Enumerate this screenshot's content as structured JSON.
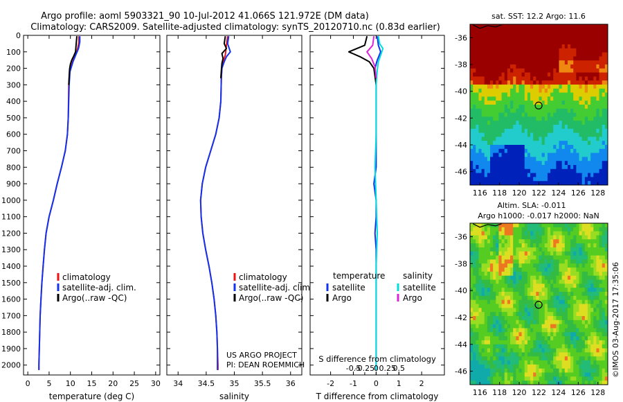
{
  "header": {
    "title_line1": "Argo profile: aoml 5903321_90 10-Jul-2012 41.066S 121.972E (DM data)",
    "title_line2": "Climatology: CARS2009. Satellite-adjusted climatology: synTS_20120710.nc (0.83d earlier)"
  },
  "credit": "©IMOS 03-Aug-2017 17:35:06",
  "project": {
    "line1": "US ARGO PROJECT",
    "line2": "PI: DEAN ROEMMICH"
  },
  "colors": {
    "climatology": "#ee1111",
    "satellite": "#1133ee",
    "argo": "#000000",
    "sal_sat": "#00dddd",
    "sal_argo": "#dd22dd",
    "argo_marker": "#000000"
  },
  "chart_data": [
    {
      "id": "temperature",
      "type": "line",
      "xlabel": "temperature (deg C)",
      "ylabel": "",
      "xlim": [
        -1,
        31
      ],
      "ylim": [
        2060,
        0
      ],
      "xticks": [
        0,
        5,
        10,
        15,
        20,
        25,
        30
      ],
      "yticks": [
        0,
        100,
        200,
        300,
        400,
        500,
        600,
        700,
        800,
        900,
        1000,
        1100,
        1200,
        1300,
        1400,
        1500,
        1600,
        1700,
        1800,
        1900,
        2000
      ],
      "legend": [
        "climatology",
        "satellite-adj. clim.",
        "Argo(..raw -QC)"
      ],
      "series": [
        {
          "name": "climatology",
          "color": "climatology",
          "points": [
            [
              12.0,
              5
            ],
            [
              12.0,
              40
            ],
            [
              11.7,
              80
            ],
            [
              11.3,
              110
            ],
            [
              10.5,
              160
            ],
            [
              9.8,
              220
            ],
            [
              9.6,
              300
            ],
            [
              9.5,
              500
            ],
            [
              9.3,
              600
            ],
            [
              8.8,
              700
            ],
            [
              7.9,
              800
            ],
            [
              6.9,
              900
            ],
            [
              6.0,
              1000
            ],
            [
              5.0,
              1100
            ],
            [
              4.3,
              1200
            ],
            [
              3.9,
              1300
            ],
            [
              3.6,
              1400
            ],
            [
              3.3,
              1500
            ],
            [
              3.1,
              1600
            ],
            [
              2.9,
              1700
            ],
            [
              2.8,
              1800
            ],
            [
              2.7,
              1900
            ],
            [
              2.6,
              2000
            ],
            [
              2.6,
              2030
            ]
          ]
        },
        {
          "name": "satellite-adj. clim.",
          "color": "satellite",
          "points": [
            [
              12.2,
              5
            ],
            [
              12.2,
              40
            ],
            [
              11.9,
              80
            ],
            [
              11.4,
              110
            ],
            [
              10.6,
              160
            ],
            [
              9.9,
              220
            ],
            [
              9.7,
              300
            ],
            [
              9.5,
              500
            ],
            [
              9.3,
              600
            ],
            [
              8.8,
              700
            ],
            [
              7.9,
              800
            ],
            [
              6.9,
              900
            ],
            [
              6.0,
              1000
            ],
            [
              5.0,
              1100
            ],
            [
              4.3,
              1200
            ],
            [
              3.9,
              1300
            ],
            [
              3.6,
              1400
            ],
            [
              3.3,
              1500
            ],
            [
              3.1,
              1600
            ],
            [
              2.9,
              1700
            ],
            [
              2.8,
              1800
            ],
            [
              2.7,
              1900
            ],
            [
              2.6,
              2000
            ],
            [
              2.6,
              2030
            ]
          ]
        },
        {
          "name": "Argo(..raw -QC)",
          "color": "argo",
          "points": [
            [
              11.5,
              5
            ],
            [
              11.4,
              40
            ],
            [
              11.2,
              100
            ],
            [
              10.8,
              125
            ],
            [
              10.3,
              150
            ],
            [
              10.0,
              175
            ],
            [
              9.8,
              205
            ],
            [
              9.6,
              300
            ]
          ]
        }
      ]
    },
    {
      "id": "salinity",
      "type": "line",
      "xlabel": "salinity",
      "ylabel": "",
      "xlim": [
        33.8,
        36.2
      ],
      "ylim": [
        2060,
        0
      ],
      "xticks": [
        34,
        34.5,
        35,
        35.5,
        36
      ],
      "legend": [
        "climatology",
        "satellite-adj. clim.",
        "Argo(..raw -QC)"
      ],
      "series": [
        {
          "name": "climatology",
          "color": "climatology",
          "points": [
            [
              34.88,
              5
            ],
            [
              34.86,
              60
            ],
            [
              34.84,
              120
            ],
            [
              34.8,
              160
            ],
            [
              34.78,
              200
            ],
            [
              34.77,
              250
            ],
            [
              34.76,
              400
            ],
            [
              34.73,
              500
            ],
            [
              34.67,
              600
            ],
            [
              34.58,
              700
            ],
            [
              34.49,
              800
            ],
            [
              34.43,
              900
            ],
            [
              34.4,
              1000
            ],
            [
              34.41,
              1100
            ],
            [
              34.44,
              1200
            ],
            [
              34.49,
              1300
            ],
            [
              34.55,
              1400
            ],
            [
              34.6,
              1500
            ],
            [
              34.64,
              1600
            ],
            [
              34.67,
              1700
            ],
            [
              34.69,
              1800
            ],
            [
              34.7,
              1900
            ],
            [
              34.71,
              2000
            ],
            [
              34.71,
              2030
            ]
          ]
        },
        {
          "name": "satellite-adj. clim.",
          "color": "satellite",
          "points": [
            [
              34.9,
              5
            ],
            [
              34.88,
              50
            ],
            [
              34.93,
              100
            ],
            [
              34.86,
              130
            ],
            [
              34.82,
              160
            ],
            [
              34.78,
              200
            ],
            [
              34.77,
              250
            ],
            [
              34.76,
              400
            ],
            [
              34.73,
              500
            ],
            [
              34.67,
              600
            ],
            [
              34.58,
              700
            ],
            [
              34.49,
              800
            ],
            [
              34.43,
              900
            ],
            [
              34.4,
              1000
            ],
            [
              34.41,
              1100
            ],
            [
              34.44,
              1200
            ],
            [
              34.49,
              1300
            ],
            [
              34.55,
              1400
            ],
            [
              34.6,
              1500
            ],
            [
              34.64,
              1600
            ],
            [
              34.67,
              1700
            ],
            [
              34.69,
              1800
            ],
            [
              34.7,
              1900
            ],
            [
              34.7,
              2000
            ],
            [
              34.7,
              2030
            ]
          ]
        },
        {
          "name": "Argo(..raw -QC)",
          "color": "argo",
          "points": [
            [
              34.84,
              5
            ],
            [
              34.82,
              50
            ],
            [
              34.86,
              80
            ],
            [
              34.78,
              110
            ],
            [
              34.8,
              140
            ],
            [
              34.78,
              170
            ],
            [
              34.77,
              210
            ],
            [
              34.76,
              260
            ]
          ]
        }
      ]
    },
    {
      "id": "difference",
      "type": "line",
      "xlabel": "T difference from climatology",
      "x2label": "S difference from climatology",
      "xlim": [
        -2.9,
        3.0
      ],
      "ylim": [
        2060,
        0
      ],
      "xticks": [
        -2,
        -1,
        0,
        1,
        2
      ],
      "x2ticks": [
        -0.5,
        -0.25,
        0,
        0.25,
        0.5
      ],
      "legend_headers": [
        "temperature",
        "salinity"
      ],
      "legend": [
        "satellite",
        "Argo",
        "satellite",
        "Argo"
      ],
      "series": [
        {
          "name": "temperature satellite",
          "color": "satellite",
          "points": [
            [
              0.05,
              5
            ],
            [
              0.1,
              60
            ],
            [
              0.2,
              100
            ],
            [
              0.05,
              150
            ],
            [
              -0.05,
              200
            ],
            [
              0.0,
              300
            ],
            [
              0.0,
              600
            ],
            [
              0.0,
              800
            ],
            [
              -0.1,
              900
            ],
            [
              0.0,
              1000
            ],
            [
              0.0,
              1100
            ],
            [
              -0.05,
              1200
            ],
            [
              0.0,
              1300
            ],
            [
              0.0,
              1600
            ],
            [
              0.0,
              2030
            ]
          ]
        },
        {
          "name": "temperature Argo",
          "color": "argo",
          "points": [
            [
              -0.4,
              5
            ],
            [
              -0.5,
              60
            ],
            [
              -1.2,
              100
            ],
            [
              -0.7,
              130
            ],
            [
              -0.3,
              160
            ],
            [
              -0.1,
              200
            ],
            [
              0.0,
              300
            ]
          ]
        },
        {
          "name": "salinity satellite",
          "color": "sal_sat",
          "points": [
            [
              0.1,
              5
            ],
            [
              0.15,
              50
            ],
            [
              0.3,
              80
            ],
            [
              0.2,
              120
            ],
            [
              0.1,
              160
            ],
            [
              0.05,
              210
            ],
            [
              0.0,
              300
            ],
            [
              0.0,
              600
            ],
            [
              -0.05,
              800
            ],
            [
              0.0,
              1000
            ],
            [
              0.05,
              1200
            ],
            [
              0.0,
              1400
            ],
            [
              0.0,
              2030
            ]
          ]
        },
        {
          "name": "salinity Argo",
          "color": "sal_argo",
          "points": [
            [
              -0.1,
              5
            ],
            [
              -0.15,
              60
            ],
            [
              -0.4,
              100
            ],
            [
              -0.2,
              140
            ],
            [
              -0.05,
              190
            ],
            [
              0.0,
              260
            ]
          ]
        }
      ]
    },
    {
      "id": "sst_map",
      "type": "heatmap",
      "title": "sat. SST: 12.2 Argo: 11.6",
      "xlim": [
        115,
        129
      ],
      "ylim": [
        -47,
        -35
      ],
      "xticks": [
        116,
        118,
        120,
        122,
        124,
        126,
        128
      ],
      "yticks": [
        -36,
        -38,
        -40,
        -42,
        -44,
        -46
      ],
      "marker": {
        "lon": 121.972,
        "lat": -41.066
      }
    },
    {
      "id": "sla_map",
      "type": "heatmap",
      "title": "Altim. SLA: -0.011",
      "subtitle": "Argo h1000: -0.017 h2000: NaN",
      "xlim": [
        115,
        129
      ],
      "ylim": [
        -47,
        -35
      ],
      "xticks": [
        116,
        118,
        120,
        122,
        124,
        126,
        128
      ],
      "yticks": [
        -36,
        -38,
        -40,
        -42,
        -44,
        -46
      ],
      "marker": {
        "lon": 121.972,
        "lat": -41.066
      }
    }
  ]
}
